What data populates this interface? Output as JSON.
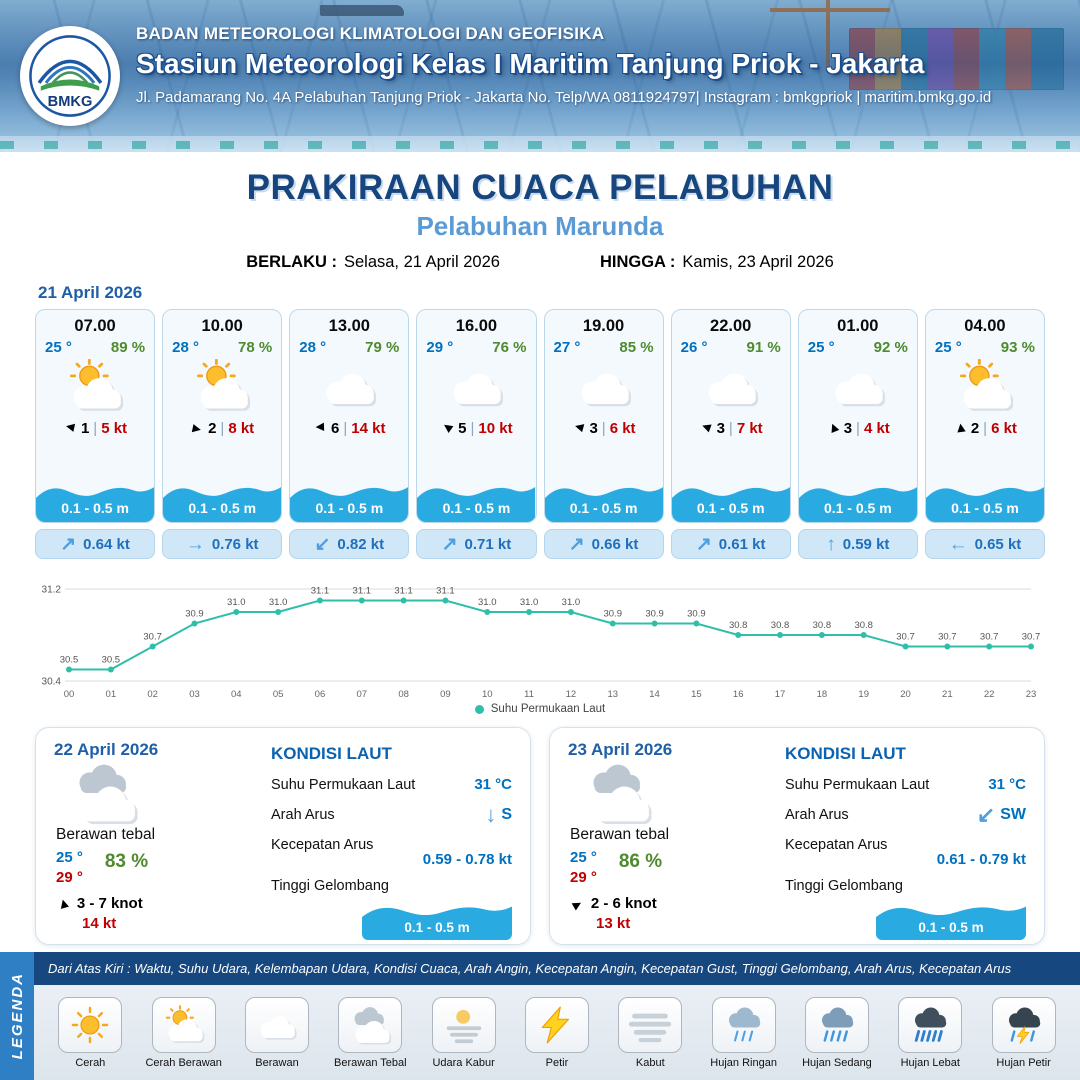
{
  "header": {
    "logo_text": "BMKG",
    "org": "BADAN METEOROLOGI KLIMATOLOGI DAN GEOFISIKA",
    "station": "Stasiun Meteorologi Kelas I Maritim Tanjung Priok - Jakarta",
    "address": "Jl. Padamarang No. 4A Pelabuhan Tanjung Priok - Jakarta No. Telp/WA 0811924797| Instagram : bmkgpriok | maritim.bmkg.go.id"
  },
  "title": {
    "main": "PRAKIRAAN CUACA PELABUHAN",
    "port": "Pelabuhan Marunda"
  },
  "validity": {
    "berlaku_label": "BERLAKU :",
    "berlaku_value": "Selasa, 21 April 2026",
    "hingga_label": "HINGGA :",
    "hingga_value": "Kamis, 23 April 2026"
  },
  "forecast_date": "21 April 2026",
  "cards": [
    {
      "time": "07.00",
      "temp": "25 °",
      "humidity": "89 %",
      "icon": "cerah-berawan",
      "wind_speed": "1",
      "gust": "5 kt",
      "wind_dir_deg": 192,
      "wave": "0.1 - 0.5 m",
      "current_dir": "↗",
      "current_speed": "0.64 kt"
    },
    {
      "time": "10.00",
      "temp": "28 °",
      "humidity": "78 %",
      "icon": "cerah-berawan",
      "wind_speed": "2",
      "gust": "8 kt",
      "wind_dir_deg": 12,
      "wave": "0.1 - 0.5 m",
      "current_dir": "→",
      "current_speed": "0.76 kt"
    },
    {
      "time": "13.00",
      "temp": "28 °",
      "humidity": "79 %",
      "icon": "berawan",
      "wind_speed": "6",
      "gust": "14 kt",
      "wind_dir_deg": 178,
      "wave": "0.1 - 0.5 m",
      "current_dir": "↙",
      "current_speed": "0.82 kt"
    },
    {
      "time": "16.00",
      "temp": "29 °",
      "humidity": "76 %",
      "icon": "berawan",
      "wind_speed": "5",
      "gust": "10 kt",
      "wind_dir_deg": 215,
      "wave": "0.1 - 0.5 m",
      "current_dir": "↗",
      "current_speed": "0.71 kt"
    },
    {
      "time": "19.00",
      "temp": "27 °",
      "humidity": "85 %",
      "icon": "berawan",
      "wind_speed": "3",
      "gust": "6 kt",
      "wind_dir_deg": 195,
      "wave": "0.1 - 0.5 m",
      "current_dir": "↗",
      "current_speed": "0.66 kt"
    },
    {
      "time": "22.00",
      "temp": "26 °",
      "humidity": "91 %",
      "icon": "berawan",
      "wind_speed": "3",
      "gust": "7 kt",
      "wind_dir_deg": 200,
      "wave": "0.1 - 0.5 m",
      "current_dir": "↗",
      "current_speed": "0.61 kt"
    },
    {
      "time": "01.00",
      "temp": "25 °",
      "humidity": "92 %",
      "icon": "berawan",
      "wind_speed": "3",
      "gust": "4 kt",
      "wind_dir_deg": 248,
      "wave": "0.1 - 0.5 m",
      "current_dir": "↑",
      "current_speed": "0.59 kt"
    },
    {
      "time": "04.00",
      "temp": "25 °",
      "humidity": "93 %",
      "icon": "cerah-berawan",
      "wind_speed": "2",
      "gust": "6 kt",
      "wind_dir_deg": 262,
      "wave": "0.1 - 0.5 m",
      "current_dir": "←",
      "current_speed": "0.65 kt"
    }
  ],
  "chart_data": {
    "type": "line",
    "title": "",
    "series_name": "Suhu Permukaan Laut",
    "x": [
      "00",
      "01",
      "02",
      "03",
      "04",
      "05",
      "06",
      "07",
      "08",
      "09",
      "10",
      "11",
      "12",
      "13",
      "14",
      "15",
      "16",
      "17",
      "18",
      "19",
      "20",
      "21",
      "22",
      "23"
    ],
    "values": [
      30.5,
      30.5,
      30.7,
      30.9,
      31.0,
      31.0,
      31.1,
      31.1,
      31.1,
      31.1,
      31.0,
      31.0,
      31.0,
      30.9,
      30.9,
      30.9,
      30.8,
      30.8,
      30.8,
      30.8,
      30.7,
      30.7,
      30.7,
      30.7
    ],
    "ylim": [
      30.4,
      31.2
    ],
    "color": "#2fbfa8",
    "legend_position": "bottom",
    "grid": false
  },
  "day_cards": [
    {
      "date": "22 April 2026",
      "icon": "berawan-tebal",
      "condition": "Berawan tebal",
      "temp_min": "25 °",
      "temp_max": "29 °",
      "humidity": "83 %",
      "wind_dir_deg": 255,
      "wind_range": "3 - 7 knot",
      "gust": "14 kt",
      "sea": {
        "title": "KONDISI LAUT",
        "sst_label": "Suhu Permukaan Laut",
        "sst_value": "31 °C",
        "current_dir_label": "Arah Arus",
        "current_dir_arrow": "↓",
        "current_dir_value": "S",
        "current_speed_label": "Kecepatan Arus",
        "current_speed_value": "0.59 - 0.78 kt",
        "wave_label": "Tinggi Gelombang",
        "wave_value": "0.1 - 0.5 m"
      }
    },
    {
      "date": "23 April 2026",
      "icon": "berawan-tebal",
      "condition": "Berawan tebal",
      "temp_min": "25 °",
      "temp_max": "29 °",
      "humidity": "86 %",
      "wind_dir_deg": 330,
      "wind_range": "2 - 6 knot",
      "gust": "13 kt",
      "sea": {
        "title": "KONDISI LAUT",
        "sst_label": "Suhu Permukaan Laut",
        "sst_value": "31 °C",
        "current_dir_label": "Arah Arus",
        "current_dir_arrow": "↙",
        "current_dir_value": "SW",
        "current_speed_label": "Kecepatan Arus",
        "current_speed_value": "0.61 - 0.79 kt",
        "wave_label": "Tinggi Gelombang",
        "wave_value": "0.1 - 0.5 m"
      }
    }
  ],
  "legend": {
    "side_label": "LEGENDA",
    "note": "Dari Atas Kiri : Waktu, Suhu Udara, Kelembapan Udara, Kondisi Cuaca, Arah Angin, Kecepatan Angin, Kecepatan Gust, Tinggi Gelombang, Arah Arus, Kecepatan Arus",
    "items": [
      {
        "label": "Cerah",
        "icon": "cerah"
      },
      {
        "label": "Cerah Berawan",
        "icon": "cerah-berawan"
      },
      {
        "label": "Berawan",
        "icon": "berawan"
      },
      {
        "label": "Berawan Tebal",
        "icon": "berawan-tebal"
      },
      {
        "label": "Udara Kabur",
        "icon": "udara-kabur"
      },
      {
        "label": "Petir",
        "icon": "petir"
      },
      {
        "label": "Kabut",
        "icon": "kabut"
      },
      {
        "label": "Hujan Ringan",
        "icon": "hujan-ringan"
      },
      {
        "label": "Hujan Sedang",
        "icon": "hujan-sedang"
      },
      {
        "label": "Hujan Lebat",
        "icon": "hujan-lebat"
      },
      {
        "label": "Hujan Petir",
        "icon": "hujan-petir"
      }
    ]
  },
  "colors": {
    "temp_blue": "#0070c0",
    "humidity_green": "#4e8a2e",
    "gust_red": "#c00000",
    "wave_blue": "#29abe2",
    "title_navy": "#17457e",
    "port_blue": "#5b9bd5",
    "date_blue": "#1f5fa8",
    "chart_teal": "#2fbfa8"
  }
}
